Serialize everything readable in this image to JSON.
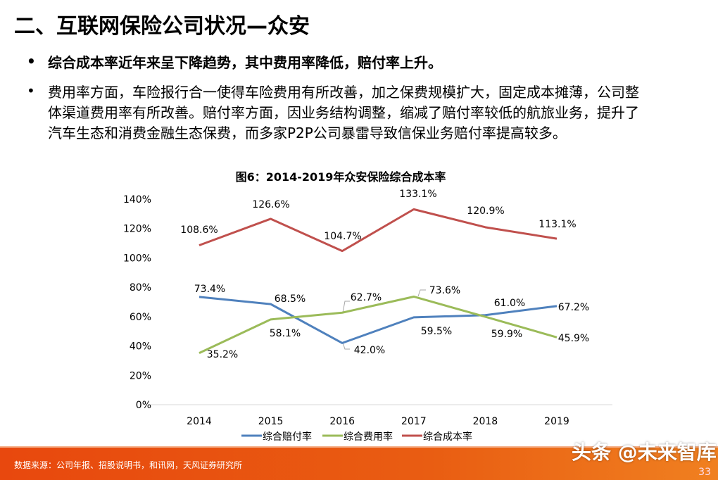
{
  "title": "二、互联网保险公司状况—众安",
  "bullets": [
    {
      "marker": "•",
      "lines": [
        "综合成本率近年来呈下降趋势，其中费用率降低，赔付率上升。"
      ]
    },
    {
      "marker": "•",
      "lines": [
        "费用率方面，车险报行合一使得车险费用有所改善，加之保费规模扩大，固定成本摊薄，公司整",
        "体渠道费用率有所改善。赔付率方面，因业务结构调整，缩减了赔付率较低的航旅业务，提升了",
        "汽车生态和消费金融生态保费，而多家P2P公司暴雷导致信保业务赔付率提高较多。"
      ]
    }
  ],
  "chart_data": {
    "type": "line",
    "title": "图6：2014-2019年众安保险综合成本率",
    "categories": [
      "2014",
      "2015",
      "2016",
      "2017",
      "2018",
      "2019"
    ],
    "yticks": [
      "0%",
      "20%",
      "40%",
      "60%",
      "80%",
      "100%",
      "120%",
      "140%"
    ],
    "ylim": [
      0,
      140
    ],
    "grid": false,
    "legend_position": "bottom",
    "series": [
      {
        "name": "综合赔付率",
        "color": "#4f81bd",
        "values": [
          73.4,
          68.5,
          42.0,
          59.5,
          61.0,
          67.2
        ],
        "labels": [
          "73.4%",
          "68.5%",
          "42.0%",
          "59.5%",
          "61.0%",
          "67.2%"
        ]
      },
      {
        "name": "综合费用率",
        "color": "#9bbb59",
        "values": [
          35.2,
          58.1,
          62.7,
          73.6,
          59.9,
          45.9
        ],
        "labels": [
          "35.2%",
          "58.1%",
          "62.7%",
          "73.6%",
          "59.9%",
          "45.9%"
        ]
      },
      {
        "name": "综合成本率",
        "color": "#c0504d",
        "values": [
          108.6,
          126.6,
          104.7,
          133.1,
          120.9,
          113.1
        ],
        "labels": [
          "108.6%",
          "126.6%",
          "104.7%",
          "133.1%",
          "120.9%",
          "113.1%"
        ]
      }
    ]
  },
  "footer": {
    "source": "数据来源：公司年报、招股说明书，和讯网，天风证券研究所",
    "watermark": "头条 @未来智库",
    "page_number": "33"
  }
}
